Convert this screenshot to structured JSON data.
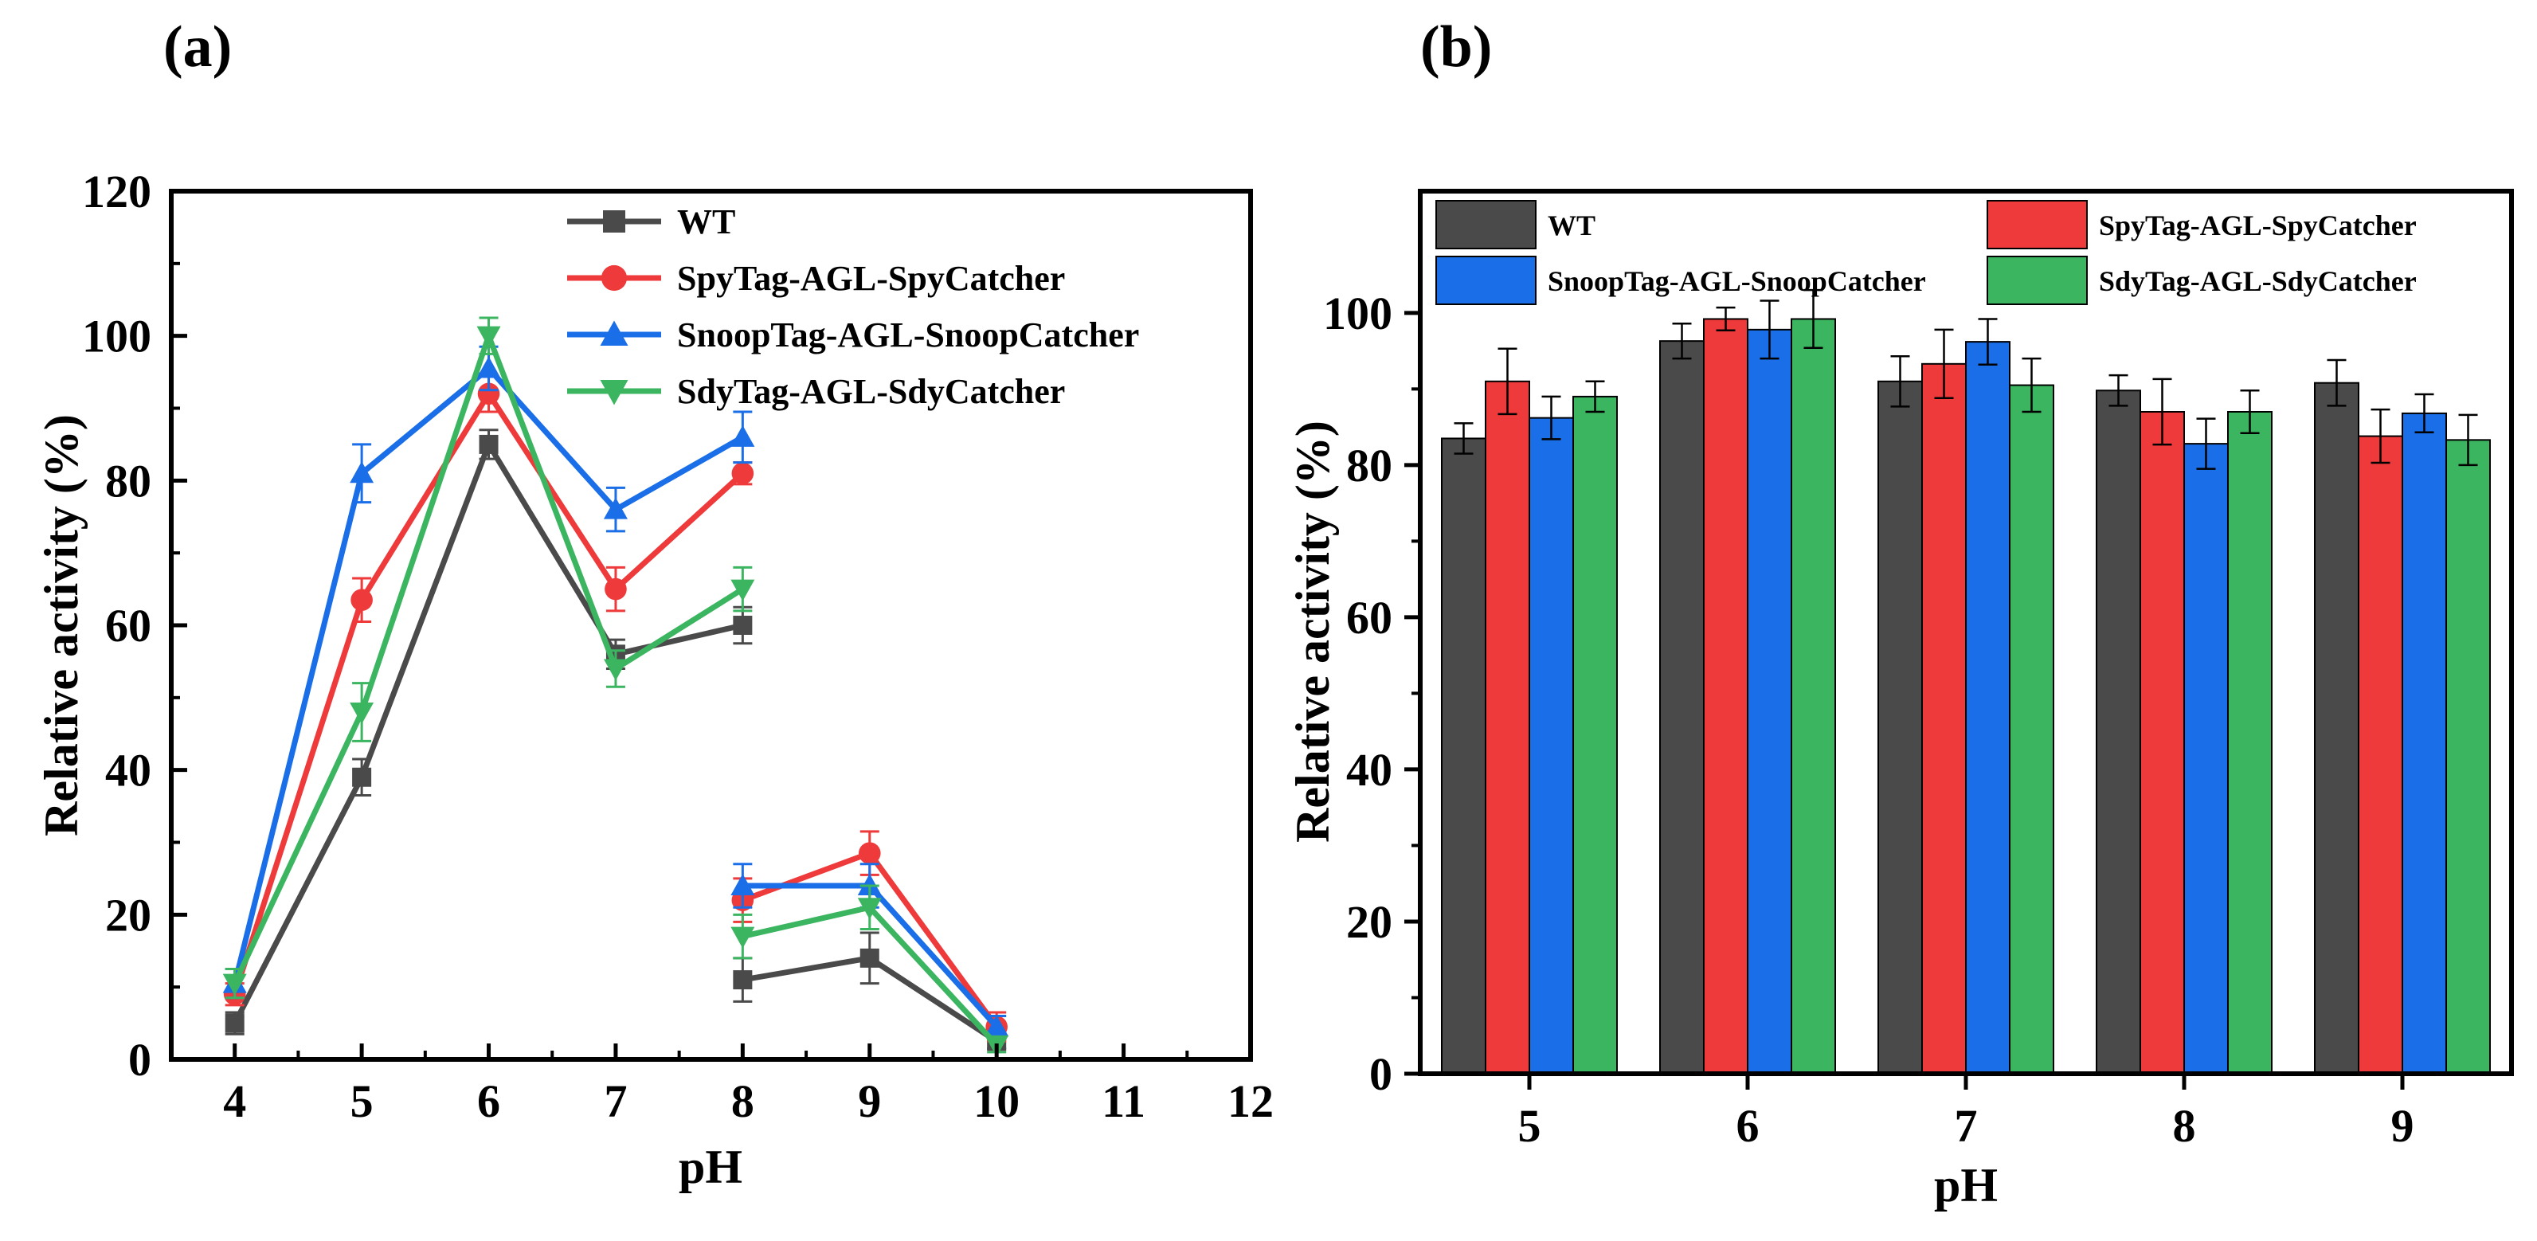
{
  "chart_data": [
    {
      "panel_label": "(a)",
      "type": "line",
      "xlabel": "pH",
      "ylabel": "Relative activity (%)",
      "xlim": [
        3.5,
        12
      ],
      "ylim": [
        0,
        120
      ],
      "x_ticks": [
        4,
        5,
        6,
        7,
        8,
        9,
        10,
        11,
        12
      ],
      "y_ticks": [
        0,
        20,
        40,
        60,
        80,
        100,
        120
      ],
      "legend_position": "top-center",
      "series": [
        {
          "name": "WT",
          "color": "#4a4a4a",
          "marker": "square",
          "segments": [
            [
              {
                "x": 4,
                "y": 5,
                "err": 1.5
              },
              {
                "x": 5,
                "y": 39,
                "err": 2.5
              },
              {
                "x": 6,
                "y": 85,
                "err": 2
              },
              {
                "x": 7,
                "y": 56,
                "err": 2
              },
              {
                "x": 8,
                "y": 60,
                "err": 2.5
              }
            ],
            [
              {
                "x": 8,
                "y": 11,
                "err": 3
              },
              {
                "x": 9,
                "y": 14,
                "err": 3.5
              },
              {
                "x": 10,
                "y": 2.5,
                "err": 1
              }
            ]
          ]
        },
        {
          "name": "SpyTag-AGL-SpyCatcher",
          "color": "#ee3a3a",
          "marker": "circle",
          "segments": [
            [
              {
                "x": 4,
                "y": 9,
                "err": 1.5
              },
              {
                "x": 5,
                "y": 63.5,
                "err": 3
              },
              {
                "x": 6,
                "y": 92,
                "err": 2.5
              },
              {
                "x": 7,
                "y": 65,
                "err": 3
              },
              {
                "x": 8,
                "y": 81,
                "err": 1.5
              }
            ],
            [
              {
                "x": 8,
                "y": 22,
                "err": 3
              },
              {
                "x": 9,
                "y": 28.5,
                "err": 3
              },
              {
                "x": 10,
                "y": 4.5,
                "err": 2
              }
            ]
          ]
        },
        {
          "name": "SnoopTag-AGL-SnoopCatcher",
          "color": "#1a6ee8",
          "marker": "triangle-up",
          "segments": [
            [
              {
                "x": 4,
                "y": 10.5,
                "err": 2
              },
              {
                "x": 5,
                "y": 81,
                "err": 4
              },
              {
                "x": 6,
                "y": 95.5,
                "err": 3
              },
              {
                "x": 7,
                "y": 76,
                "err": 3
              },
              {
                "x": 8,
                "y": 86,
                "err": 3.5
              }
            ],
            [
              {
                "x": 8,
                "y": 24,
                "err": 3
              },
              {
                "x": 9,
                "y": 24,
                "err": 3
              },
              {
                "x": 10,
                "y": 4.5,
                "err": 1.5
              }
            ]
          ]
        },
        {
          "name": "SdyTag-AGL-SdyCatcher",
          "color": "#3cb561",
          "marker": "triangle-down",
          "segments": [
            [
              {
                "x": 4,
                "y": 10.5,
                "err": 2
              },
              {
                "x": 5,
                "y": 48,
                "err": 4
              },
              {
                "x": 6,
                "y": 100,
                "err": 2.5
              },
              {
                "x": 7,
                "y": 54,
                "err": 2.5
              },
              {
                "x": 8,
                "y": 65,
                "err": 3
              }
            ],
            [
              {
                "x": 8,
                "y": 17,
                "err": 3
              },
              {
                "x": 9,
                "y": 21,
                "err": 3
              },
              {
                "x": 10,
                "y": 2,
                "err": 1
              }
            ]
          ]
        }
      ]
    },
    {
      "panel_label": "(b)",
      "type": "bar",
      "xlabel": "pH",
      "ylabel": "Relative activity (%)",
      "categories": [
        "5",
        "6",
        "7",
        "8",
        "9"
      ],
      "ylim": [
        0,
        116
      ],
      "y_ticks": [
        0,
        20,
        40,
        60,
        80,
        100
      ],
      "legend_position": "top, two columns",
      "series": [
        {
          "name": "WT",
          "color": "#4a4a4a",
          "values": [
            83.5,
            96.3,
            91,
            89.8,
            90.8
          ],
          "errors": [
            2,
            2.3,
            3.3,
            2,
            3
          ]
        },
        {
          "name": "SpyTag-AGL-SpyCatcher",
          "color": "#ee3a3a",
          "values": [
            91,
            99.2,
            93.3,
            87,
            83.8
          ],
          "errors": [
            4.3,
            1.5,
            4.5,
            4.3,
            3.5
          ]
        },
        {
          "name": "SnoopTag-AGL-SnoopCatcher",
          "color": "#1a6ee8",
          "values": [
            86.2,
            97.8,
            96.2,
            82.8,
            86.8
          ],
          "errors": [
            2.8,
            3.8,
            3,
            3.3,
            2.5
          ]
        },
        {
          "name": "SdyTag-AGL-SdyCatcher",
          "color": "#3cb561",
          "values": [
            89,
            99.2,
            90.5,
            87,
            83.3
          ],
          "errors": [
            2,
            3.8,
            3.5,
            2.8,
            3.3
          ]
        }
      ]
    }
  ]
}
